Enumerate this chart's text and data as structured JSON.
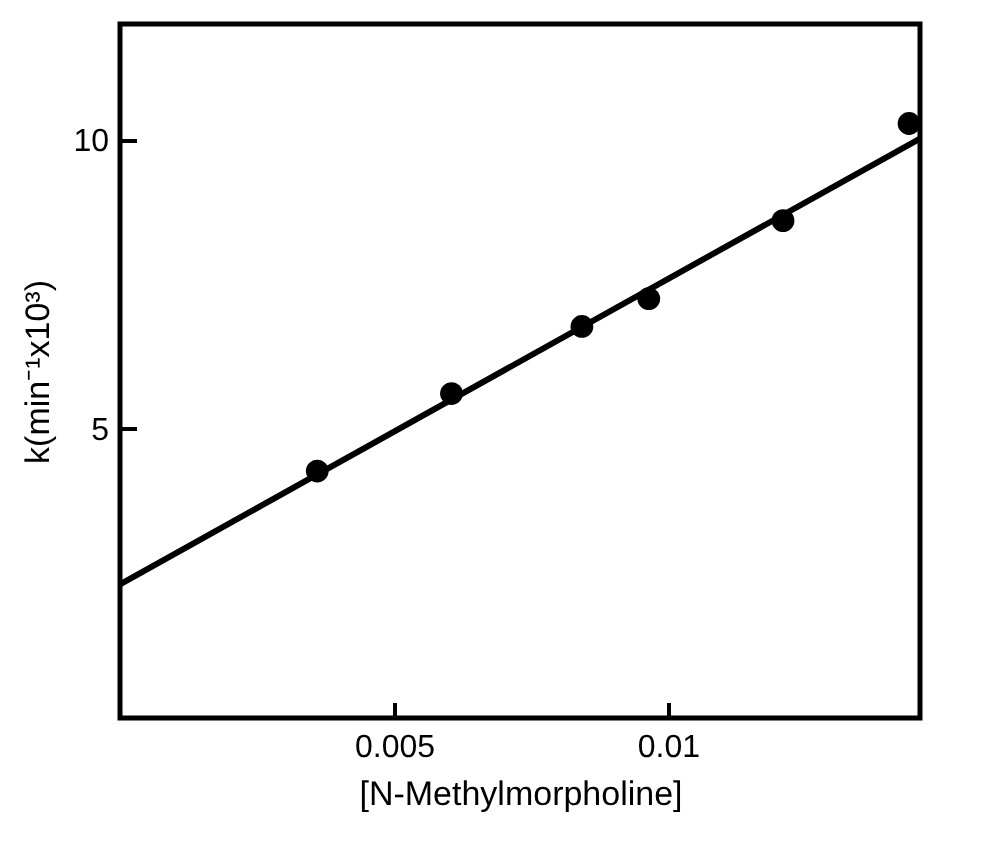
{
  "chart_data": {
    "type": "scatter",
    "xlabel": "[N-Methylmorpholine]",
    "ylabel": "k(min⁻¹x10³)",
    "x": [
      0.0036,
      0.00605,
      0.00843,
      0.00965,
      0.0121,
      0.0144
    ],
    "series": [
      {
        "color": "#000000",
        "values": [
          4.27,
          5.61,
          6.77,
          7.25,
          8.6,
          10.28
        ]
      },
      {
        "type": "line",
        "marker": "none",
        "color": "#000000",
        "x": [
          0,
          0.0146
        ],
        "values": [
          2.31,
          10.02
        ]
      }
    ],
    "marker": "circle",
    "line_style": "solid",
    "xlim": [
      0,
      0.0146
    ],
    "ylim": [
      0,
      12
    ],
    "xticks": [
      0.005,
      {
        "value": 0.01,
        "label": "0.01"
      }
    ],
    "yticks": [
      5,
      10
    ]
  }
}
